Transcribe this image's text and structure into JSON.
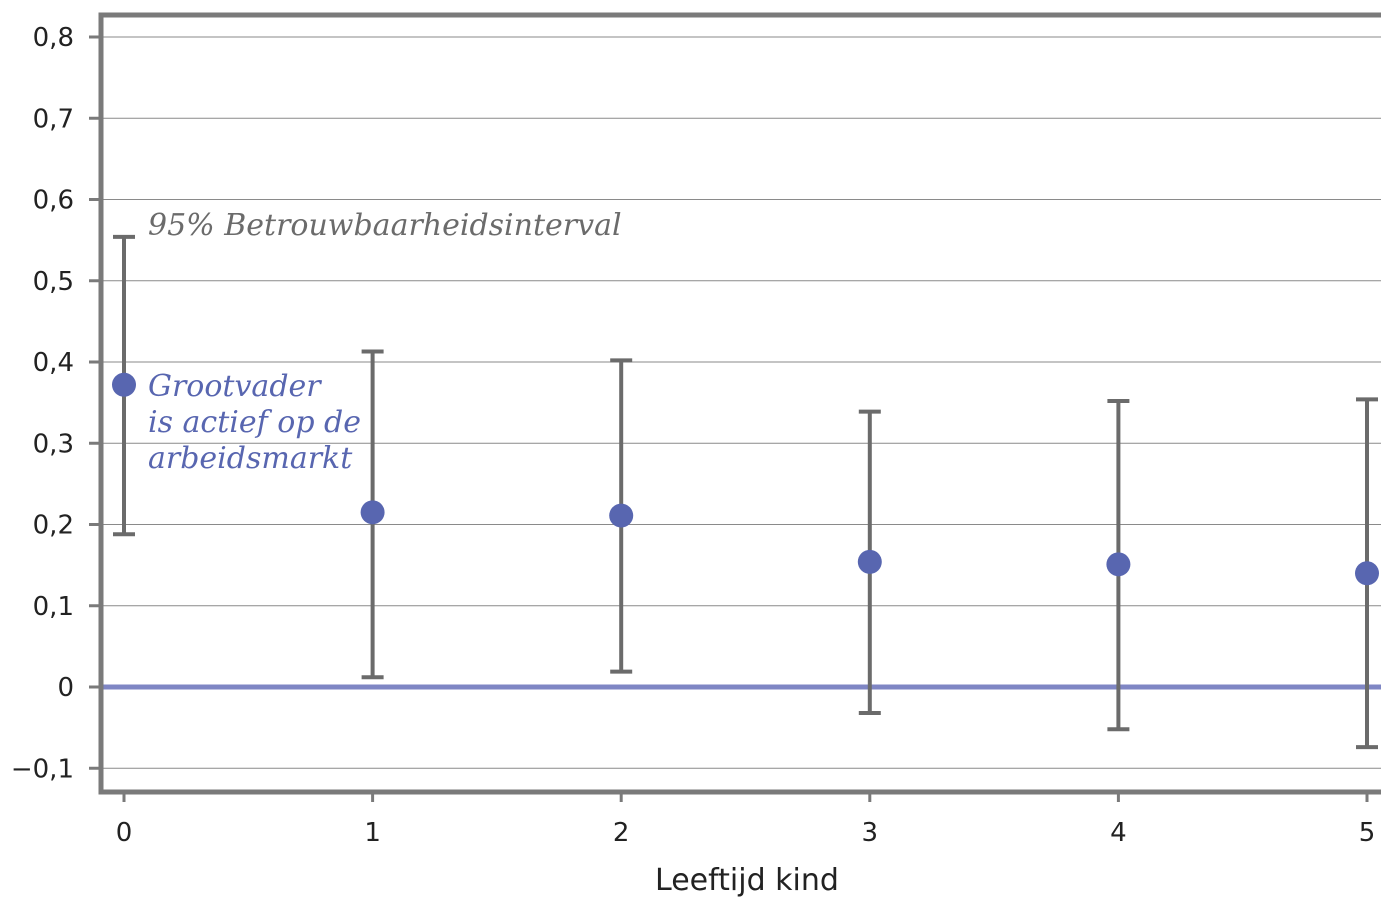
{
  "chart_data": {
    "type": "scatter",
    "xlabel": "Leeftijd kind",
    "ylabel": "",
    "x_ticks": [
      "0",
      "1",
      "2",
      "3",
      "4",
      "5"
    ],
    "y_ticks": [
      "−0,1",
      "0",
      "0,1",
      "0,2",
      "0,3",
      "0,4",
      "0,5",
      "0,6",
      "0,7",
      "0,8"
    ],
    "xlim": [
      -0.1,
      5.05
    ],
    "ylim": [
      -0.13,
      0.83
    ],
    "grid": "horizontal",
    "points": [
      {
        "x": 0,
        "y": 0.372,
        "ci_low": 0.188,
        "ci_high": 0.554
      },
      {
        "x": 1,
        "y": 0.215,
        "ci_low": 0.012,
        "ci_high": 0.413
      },
      {
        "x": 2,
        "y": 0.211,
        "ci_low": 0.019,
        "ci_high": 0.402
      },
      {
        "x": 3,
        "y": 0.154,
        "ci_low": -0.032,
        "ci_high": 0.339
      },
      {
        "x": 4,
        "y": 0.151,
        "ci_low": -0.052,
        "ci_high": 0.352
      },
      {
        "x": 5,
        "y": 0.14,
        "ci_low": -0.074,
        "ci_high": 0.354
      }
    ],
    "reference_line": 0,
    "annotations": {
      "interval": "95% Betrouwbaarheidsinterval",
      "point_lines": [
        "Grootvader",
        "is actief op de",
        "arbeidsmarkt"
      ]
    },
    "colors": {
      "point": "#5866b0",
      "errorbar": "#6b6b6b",
      "zero_line": "#7f86c4",
      "frame": "#7a7a7a",
      "grid": "#8a8a8a",
      "interval_label": "#6b6b6b",
      "point_label": "#5866b0"
    }
  }
}
